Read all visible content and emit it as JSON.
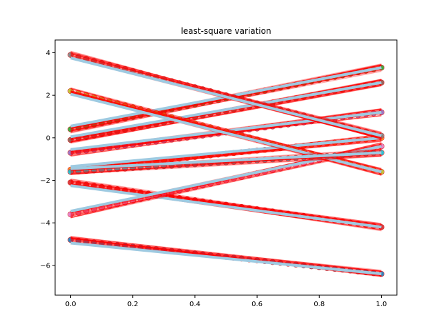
{
  "chart_data": {
    "type": "line",
    "title": "least-square variation",
    "xlabel": "",
    "ylabel": "",
    "xlim": [
      -0.05,
      1.05
    ],
    "ylim": [
      -7.4,
      4.6
    ],
    "xticks": [
      0.0,
      0.2,
      0.4,
      0.6,
      0.8,
      1.0
    ],
    "xtick_labels": [
      "0.0",
      "0.2",
      "0.4",
      "0.6",
      "0.8",
      "1.0"
    ],
    "yticks": [
      -6,
      -4,
      -2,
      0,
      2,
      4
    ],
    "ytick_labels": [
      "−6",
      "−4",
      "−2",
      "0",
      "2",
      "4"
    ],
    "grid": false,
    "legend": "none",
    "points_per_series": 41,
    "colors": {
      "fit_line": "#9ecae1",
      "variation_lines": "#ff0000",
      "marker_edge": "#d62728"
    },
    "series": [
      {
        "color": "#1f77b4",
        "y_start": -4.8,
        "y_end": -6.4
      },
      {
        "color": "#ff7f0e",
        "y_start": -1.5,
        "y_end": 0.0
      },
      {
        "color": "#2ca02c",
        "y_start": 0.4,
        "y_end": 3.3
      },
      {
        "color": "#d62728",
        "y_start": -2.1,
        "y_end": -4.2
      },
      {
        "color": "#9467bd",
        "y_start": -0.7,
        "y_end": 1.2
      },
      {
        "color": "#8c564b",
        "y_start": -0.1,
        "y_end": 2.6
      },
      {
        "color": "#e377c2",
        "y_start": -3.6,
        "y_end": -0.4
      },
      {
        "color": "#7f7f7f",
        "y_start": 3.9,
        "y_end": 0.1
      },
      {
        "color": "#bcbd22",
        "y_start": 2.2,
        "y_end": -1.6
      },
      {
        "color": "#17becf",
        "y_start": -1.6,
        "y_end": -0.7
      }
    ]
  }
}
